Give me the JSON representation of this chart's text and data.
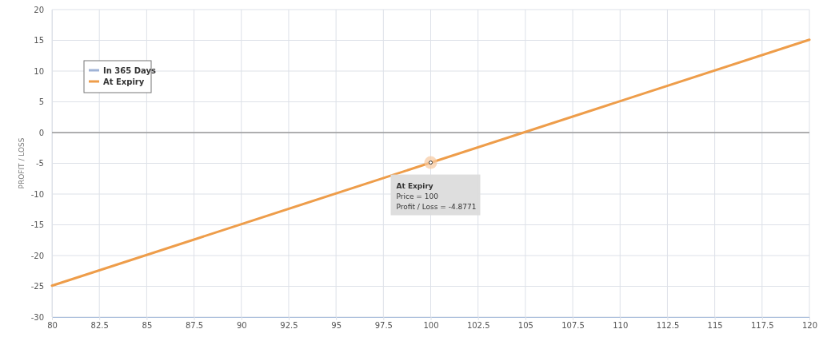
{
  "chart_data": {
    "type": "line",
    "ylabel": "PROFIT / LOSS",
    "x": [
      80,
      120
    ],
    "series": [
      {
        "name": "In 365 Days",
        "color": "#9fb3d6",
        "values": [
          null,
          null
        ]
      },
      {
        "name": "At Expiry",
        "color": "#ee9d4a",
        "values": [
          -24.9,
          15.1
        ]
      }
    ],
    "xlim": [
      80,
      120
    ],
    "xticks": [
      80,
      82.5,
      85,
      87.5,
      90,
      92.5,
      95,
      97.5,
      100,
      102.5,
      105,
      107.5,
      110,
      112.5,
      115,
      117.5,
      120
    ],
    "ylim": [
      -30,
      20
    ],
    "yticks": [
      -30,
      -25,
      -20,
      -15,
      -10,
      -5,
      0,
      5,
      10,
      15,
      20
    ],
    "grid": true,
    "legend": "top left",
    "marker": "none",
    "line_style": "solid",
    "ref_lines": [
      {
        "axis": "y",
        "value": 0,
        "color": "#999999"
      }
    ],
    "annotations": [
      {
        "text": "At Expiry\nPrice = 100\nProfit / Loss = -4.8771",
        "x": 100,
        "y": -4.8771
      }
    ]
  }
}
